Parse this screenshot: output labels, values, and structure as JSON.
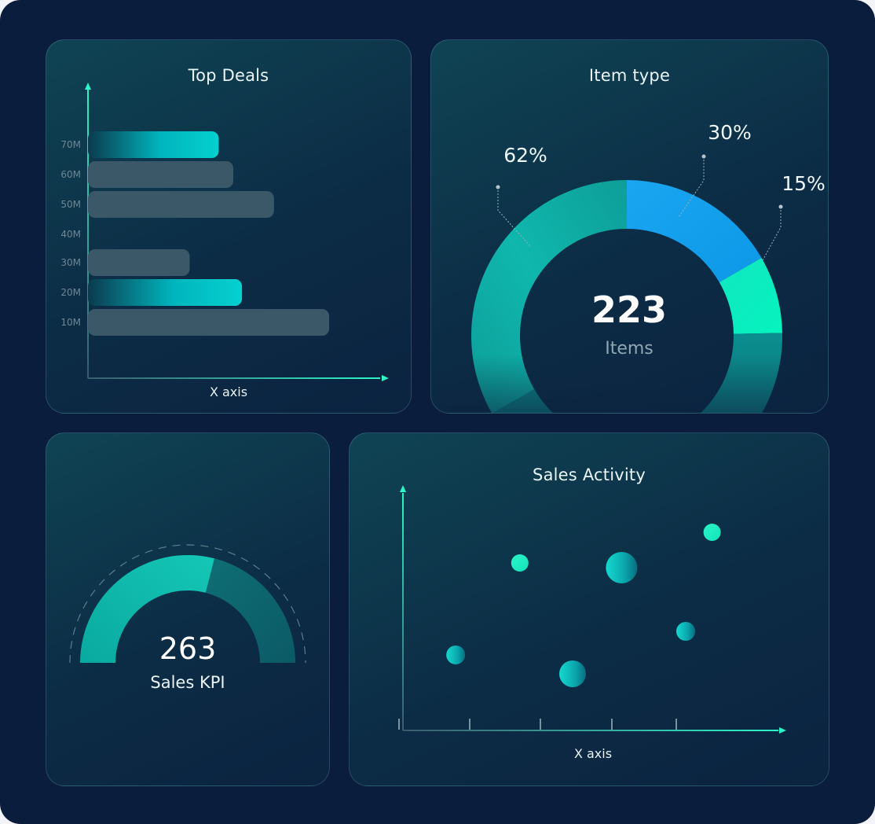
{
  "top_deals": {
    "title": "Top Deals",
    "xlabel": "X axis"
  },
  "item_type": {
    "title": "Item type",
    "center_value": "223",
    "center_label": "Items"
  },
  "sales_kpi": {
    "value": "263",
    "label": "Sales KPI",
    "fill_fraction": 0.58
  },
  "sales_activity": {
    "title": "Sales Activity",
    "xlabel": "X axis"
  },
  "colors": {
    "background": "#0b1d3c",
    "teal_accent": "#00c6c6",
    "mint": "#17f0bc",
    "blue": "#1aa6f0",
    "bar_muted": "#3a5868"
  },
  "chart_data": [
    {
      "type": "bar",
      "orientation": "horizontal",
      "title": "Top Deals",
      "xlabel": "X axis",
      "ylabel": "",
      "categories": [
        "70M",
        "60M",
        "50M",
        "40M",
        "30M",
        "20M",
        "10M"
      ],
      "values": [
        45,
        50,
        64,
        0,
        35,
        53,
        83
      ],
      "highlighted": [
        true,
        false,
        false,
        false,
        false,
        true,
        false
      ],
      "xlim": [
        0,
        100
      ],
      "grid": false
    },
    {
      "type": "pie",
      "style": "donut",
      "title": "Item type",
      "labels": [
        "62%",
        "30%",
        "15%"
      ],
      "slices": [
        {
          "label": "62%",
          "color": "#0fb9ad"
        },
        {
          "label": "30%",
          "color": "#1aa6f0"
        },
        {
          "label": "15%",
          "color": "#17f0bc"
        }
      ]
    },
    {
      "type": "scatter",
      "title": "Sales Activity",
      "xlabel": "X axis",
      "ylabel": "",
      "xlim": [
        0,
        100
      ],
      "ylim": [
        0,
        100
      ],
      "points": [
        {
          "x": 14,
          "y": 32,
          "r": 12
        },
        {
          "x": 31,
          "y": 71,
          "r": 11
        },
        {
          "x": 45,
          "y": 24,
          "r": 17
        },
        {
          "x": 58,
          "y": 69,
          "r": 20
        },
        {
          "x": 75,
          "y": 42,
          "r": 12
        },
        {
          "x": 82,
          "y": 84,
          "r": 11
        }
      ],
      "xticks": 5
    }
  ]
}
